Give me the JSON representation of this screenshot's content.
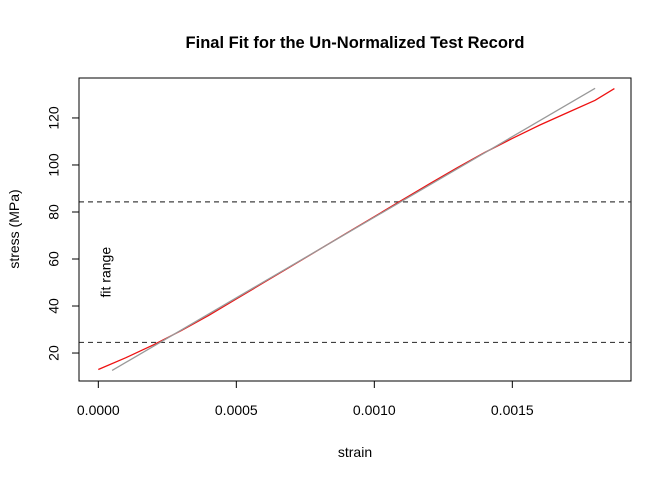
{
  "chart_data": {
    "type": "line",
    "title": "Final Fit for the Un-Normalized Test Record",
    "xlabel": "strain",
    "ylabel": "stress (MPa)",
    "xlim": [
      -7e-05,
      0.00193
    ],
    "ylim": [
      8.1,
      137.0
    ],
    "xticks": [
      {
        "value": 0.0,
        "label": "0.0000"
      },
      {
        "value": 0.0005,
        "label": "0.0005"
      },
      {
        "value": 0.001,
        "label": "0.0010"
      },
      {
        "value": 0.0015,
        "label": "0.0015"
      }
    ],
    "yticks": [
      {
        "value": 20,
        "label": "20"
      },
      {
        "value": 40,
        "label": "40"
      },
      {
        "value": 60,
        "label": "60"
      },
      {
        "value": 80,
        "label": "80"
      },
      {
        "value": 100,
        "label": "100"
      },
      {
        "value": 120,
        "label": "120"
      }
    ],
    "hlines": [
      {
        "y": 24.5,
        "style": "dashed",
        "color": "#404040"
      },
      {
        "y": 84.3,
        "style": "dashed",
        "color": "#404040"
      }
    ],
    "annotations": [
      {
        "text": "fit range",
        "x": 3e-05,
        "y": 54.4,
        "rotation": -90
      }
    ],
    "series": [
      {
        "color": "#ee1111",
        "x": [
          0.0,
          0.0001,
          0.0002,
          0.0003,
          0.0004,
          0.0005,
          0.0006,
          0.0007,
          0.0008,
          0.0009,
          0.001,
          0.0011,
          0.0012,
          0.0013,
          0.0014,
          0.0015,
          0.0016,
          0.0017,
          0.0018,
          0.00187
        ],
        "y": [
          13.0,
          18.0,
          23.5,
          29.5,
          36.0,
          43.0,
          50.0,
          57.0,
          64.0,
          71.0,
          78.0,
          85.0,
          92.0,
          98.8,
          105.3,
          111.3,
          117.0,
          122.3,
          127.5,
          132.5
        ]
      },
      {
        "color": "#999999",
        "x": [
          5e-05,
          0.0018
        ],
        "y": [
          12.6,
          132.6
        ]
      }
    ],
    "grid": false,
    "legend": "none"
  }
}
